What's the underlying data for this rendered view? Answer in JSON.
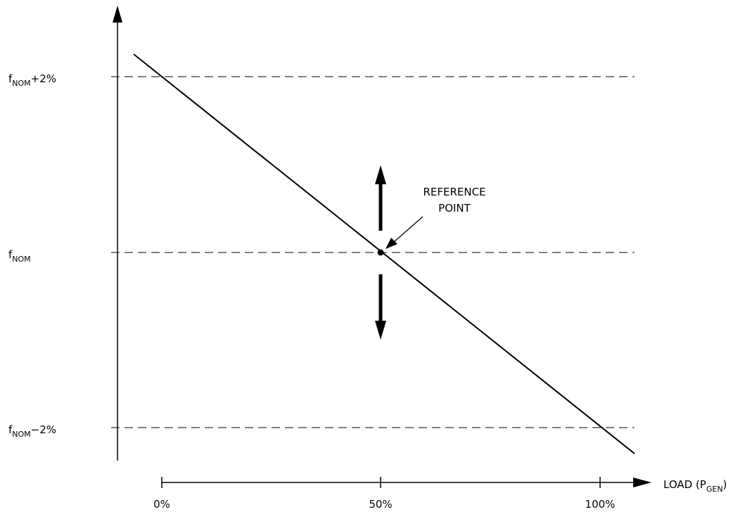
{
  "y_labels": {
    "top": {
      "base": "f",
      "sub": "NOM",
      "suffix": "+2%"
    },
    "mid": {
      "base": "f",
      "sub": "NOM",
      "suffix": ""
    },
    "bottom": {
      "base": "f",
      "sub": "NOM",
      "suffix": "−2%"
    }
  },
  "x_axis": {
    "title_prefix": "LOAD (P",
    "title_sub": "GEN",
    "title_suffix": ")",
    "ticks": [
      "0%",
      "50%",
      "100%"
    ]
  },
  "annotation": {
    "line1": "REFERENCE",
    "line2": "POINT"
  },
  "colors": {
    "ink": "#000000",
    "background": "#ffffff"
  }
}
